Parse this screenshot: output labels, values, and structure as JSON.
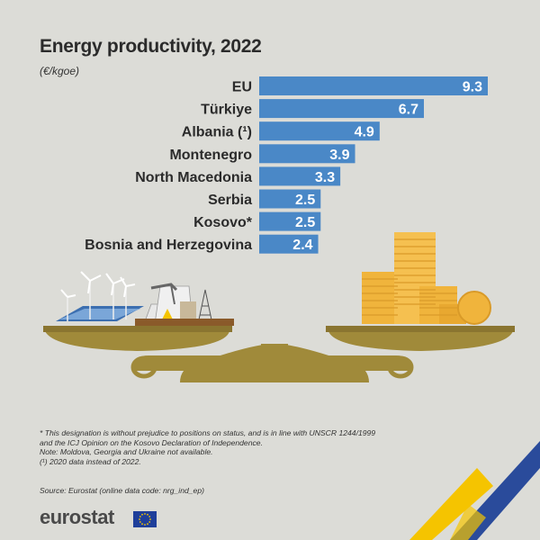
{
  "title": "Energy productivity,  2022",
  "unit": "(€/kgoe)",
  "chart_data": {
    "type": "bar",
    "orientation": "horizontal",
    "categories": [
      "EU",
      "Türkiye",
      "Albania (¹)",
      "Montenegro",
      "North Macedonia",
      "Serbia",
      "Kosovo*",
      "Bosnia and Herzegovina"
    ],
    "values": [
      9.3,
      6.7,
      4.9,
      3.9,
      3.3,
      2.5,
      2.5,
      2.4
    ],
    "value_labels": [
      "9.3",
      "6.7",
      "4.9",
      "3.9",
      "3.3",
      "2.5",
      "2.5",
      "2.4"
    ],
    "xlim": [
      0,
      9.3
    ],
    "bar_color": "#4a88c7",
    "grid": false,
    "legend": "none"
  },
  "notes": [
    "* This designation is without prejudice to positions on status, and is in line with UNSCR 1244/1999",
    "and the ICJ Opinion on the Kosovo Declaration of Independence.",
    "Note: Moldova, Georgia and Ukraine not available.",
    "(¹) 2020 data instead of 2022."
  ],
  "source": "Source: Eurostat (online data code: nrg_ind_ep)",
  "logo": "eurostat",
  "colors": {
    "background": "#dcdcd7",
    "bar": "#4a88c7",
    "scale": "#a08a3a",
    "coin": "#f0b43c",
    "accent_yellow": "#f5c400",
    "accent_blue": "#2a4b9b"
  }
}
